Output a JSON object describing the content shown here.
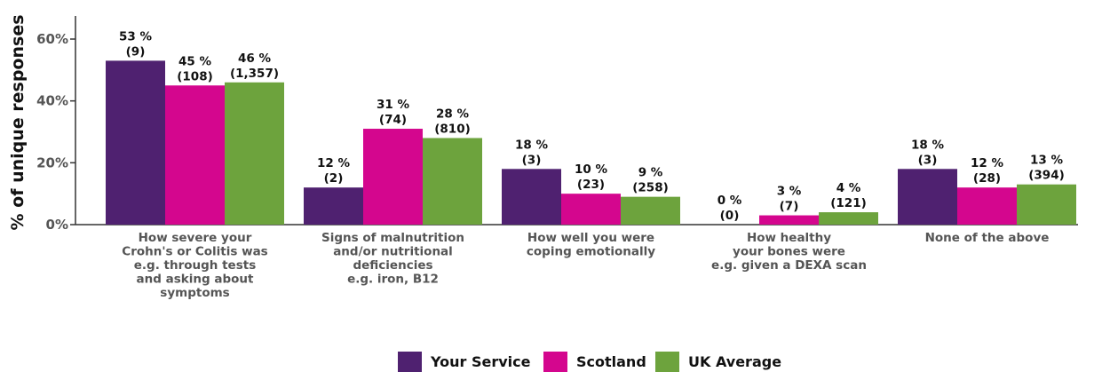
{
  "chart_data": {
    "type": "bar",
    "ylabel": "% of unique responses",
    "ylim": [
      0,
      68
    ],
    "yticks": [
      0,
      20,
      40,
      60
    ],
    "ytick_labels": [
      "0%",
      "20%",
      "40%",
      "60%"
    ],
    "grid": false,
    "legend_position": "bottom",
    "categories": [
      [
        "How severe your",
        "Crohn's or Colitis was",
        "e.g. through tests",
        "and asking about",
        "symptoms"
      ],
      [
        "Signs of malnutrition",
        "and/or nutritional",
        "deficiencies",
        "e.g. iron, B12"
      ],
      [
        "How well you were",
        "coping emotionally"
      ],
      [
        "How healthy",
        "your bones were",
        "e.g. given a DEXA scan"
      ],
      [
        "None of the above"
      ]
    ],
    "series": [
      {
        "name": "Your Service",
        "color": "#4f2170",
        "values": [
          53,
          12,
          18,
          0,
          18
        ],
        "labels": [
          "53 %",
          "12 %",
          "18 %",
          "0 %",
          "18 %"
        ],
        "counts": [
          "(9)",
          "(2)",
          "(3)",
          "(0)",
          "(3)"
        ]
      },
      {
        "name": "Scotland",
        "color": "#d4068e",
        "values": [
          45,
          31,
          10,
          3,
          12
        ],
        "labels": [
          "45 %",
          "31 %",
          "10 %",
          "3 %",
          "12 %"
        ],
        "counts": [
          "(108)",
          "(74)",
          "(23)",
          "(7)",
          "(28)"
        ]
      },
      {
        "name": "UK Average",
        "color": "#6da33d",
        "values": [
          46,
          28,
          9,
          4,
          13
        ],
        "labels": [
          "46 %",
          "28 %",
          "9 %",
          "4 %",
          "13 %"
        ],
        "counts": [
          "(1,357)",
          "(810)",
          "(258)",
          "(121)",
          "(394)"
        ]
      }
    ]
  }
}
